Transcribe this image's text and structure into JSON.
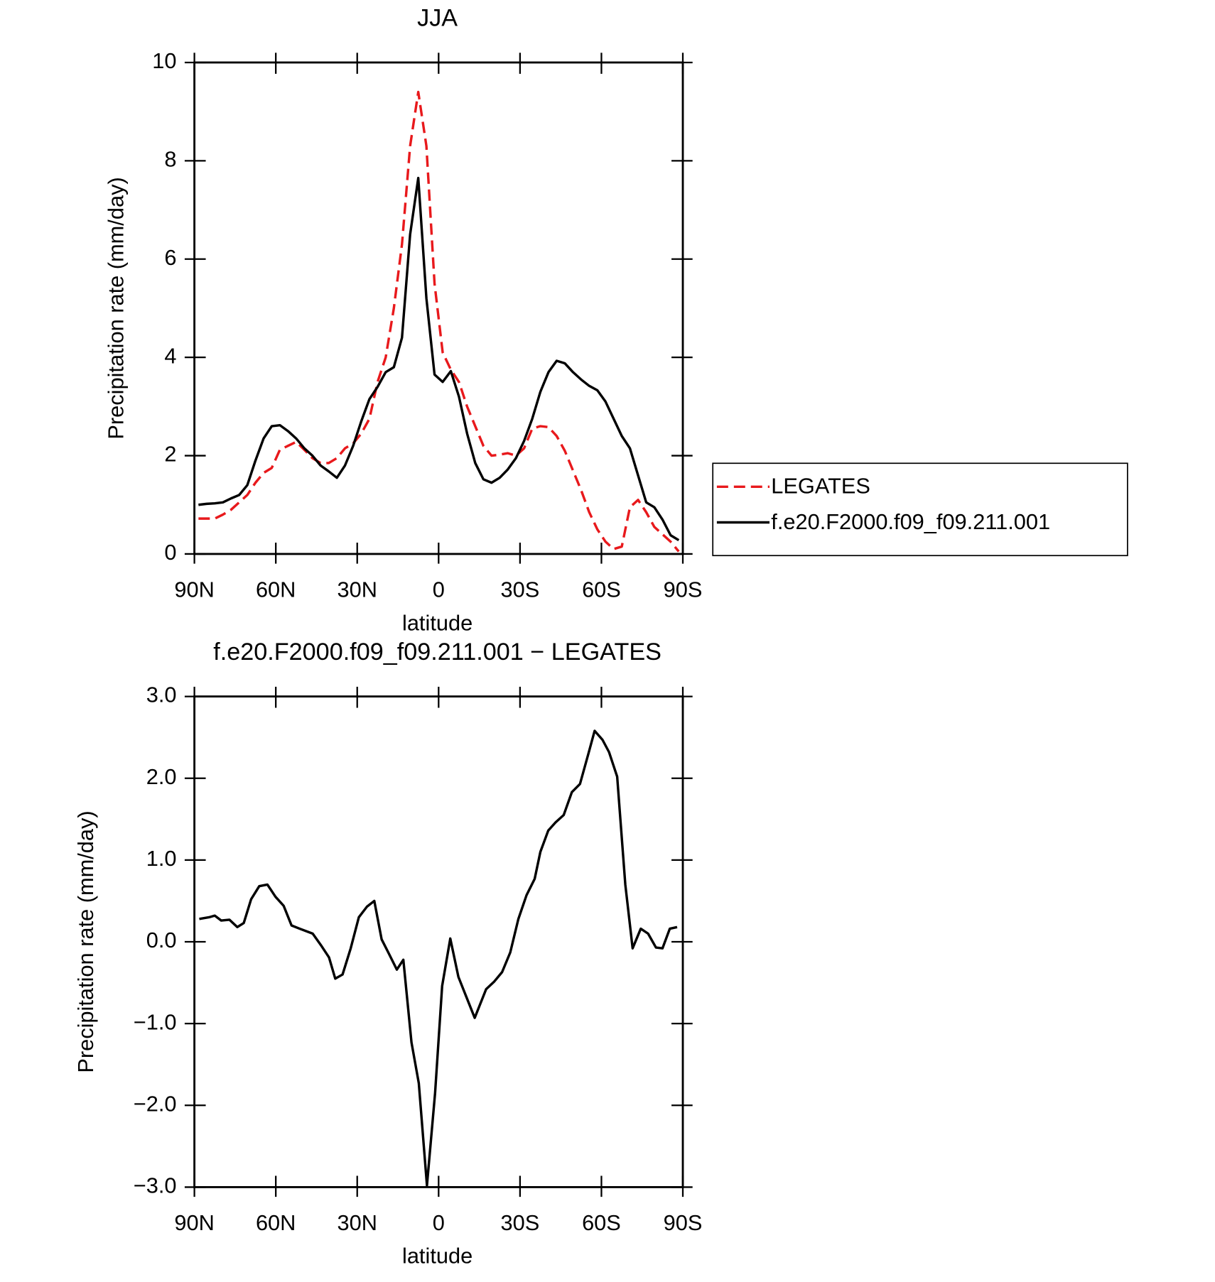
{
  "chart_data": [
    {
      "type": "line",
      "title": "JJA",
      "xlabel": "latitude",
      "ylabel": "Precipitation rate (mm/day)",
      "x": [
        88.5,
        85.5,
        82.5,
        79.5,
        76.5,
        73.5,
        70.5,
        67.5,
        64.5,
        61.5,
        58.5,
        55.5,
        52.5,
        49.5,
        46.5,
        43.5,
        40.5,
        37.5,
        34.5,
        31.5,
        28.5,
        25.5,
        22.5,
        19.5,
        16.5,
        13.5,
        10.5,
        7.5,
        4.5,
        1.5,
        -1.5,
        -4.5,
        -7.5,
        -10.5,
        -13.5,
        -16.5,
        -19.5,
        -22.5,
        -25.5,
        -28.5,
        -31.5,
        -34.5,
        -37.5,
        -40.5,
        -43.5,
        -46.5,
        -49.5,
        -52.5,
        -55.5,
        -58.5,
        -61.5,
        -64.5,
        -67.5,
        -70.5,
        -73.5,
        -76.5,
        -79.5,
        -82.5,
        -85.5,
        -88.5
      ],
      "series": [
        {
          "name": "LEGATES",
          "color": "#e8191c",
          "dash": true,
          "values": [
            0.72,
            0.72,
            0.72,
            0.8,
            0.9,
            1.05,
            1.2,
            1.45,
            1.65,
            1.75,
            2.12,
            2.2,
            2.28,
            2.12,
            1.95,
            1.85,
            1.85,
            1.95,
            2.15,
            2.25,
            2.45,
            2.75,
            3.5,
            4.0,
            5.0,
            6.3,
            8.3,
            9.4,
            8.3,
            5.5,
            4.1,
            3.75,
            3.5,
            3.0,
            2.6,
            2.2,
            2.0,
            2.02,
            2.05,
            2.0,
            2.15,
            2.55,
            2.6,
            2.58,
            2.4,
            2.1,
            1.7,
            1.3,
            0.85,
            0.5,
            0.25,
            0.1,
            0.15,
            0.95,
            1.1,
            0.85,
            0.55,
            0.4,
            0.25,
            0.05
          ]
        },
        {
          "name": "f.e20.F2000.f09_f09.211.001",
          "color": "#000000",
          "dash": false,
          "values": [
            1.0,
            1.02,
            1.03,
            1.05,
            1.13,
            1.2,
            1.4,
            1.9,
            2.35,
            2.6,
            2.62,
            2.5,
            2.35,
            2.15,
            2.0,
            1.8,
            1.68,
            1.55,
            1.8,
            2.2,
            2.7,
            3.15,
            3.4,
            3.7,
            3.8,
            4.4,
            6.5,
            7.65,
            5.2,
            3.65,
            3.5,
            3.72,
            3.2,
            2.45,
            1.85,
            1.52,
            1.45,
            1.55,
            1.72,
            1.95,
            2.3,
            2.75,
            3.3,
            3.7,
            3.93,
            3.88,
            3.7,
            3.55,
            3.42,
            3.33,
            3.1,
            2.75,
            2.4,
            2.15,
            1.6,
            1.05,
            0.95,
            0.7,
            0.38,
            0.28
          ]
        }
      ],
      "xlim": [
        90,
        -90
      ],
      "xticks": [
        {
          "value": 90,
          "label": "90N"
        },
        {
          "value": 60,
          "label": "60N"
        },
        {
          "value": 30,
          "label": "30N"
        },
        0,
        {
          "value": -30,
          "label": "30S"
        },
        {
          "value": -60,
          "label": "60S"
        },
        {
          "value": -90,
          "label": "90S"
        }
      ],
      "ylim": [
        0,
        10
      ],
      "yticks": [
        0,
        2,
        4,
        6,
        8,
        10
      ],
      "legend": "right"
    },
    {
      "type": "line",
      "title": "f.e20.F2000.f09_f09.211.001 − LEGATES",
      "xlabel": "latitude",
      "ylabel": "Precipitation rate (mm/day)",
      "x": [
        88.2,
        84.6,
        82.5,
        80.1,
        77.1,
        74.2,
        71.8,
        69.1,
        66.1,
        63.1,
        60.1,
        57.1,
        54.2,
        51.2,
        46.4,
        43.4,
        40.4,
        38.1,
        35.4,
        32.4,
        29.4,
        26.4,
        23.7,
        21.0,
        18.4,
        15.4,
        13.0,
        10.0,
        7.3,
        4.3,
        1.3,
        -1.3,
        -4.3,
        -7.3,
        -10.3,
        -13.3,
        -17.5,
        -20.4,
        -23.4,
        -26.4,
        -29.4,
        -32.4,
        -35.4,
        -37.5,
        -40.4,
        -43.1,
        -46.1,
        -49.1,
        -52.1,
        -55.2,
        -57.5,
        -60.4,
        -62.8,
        -65.8,
        -68.8,
        -71.5,
        -74.5,
        -77.2,
        -80.1,
        -82.5,
        -85.2,
        -87.9
      ],
      "series": [
        {
          "color": "#000000",
          "dash": false,
          "values": [
            0.28,
            0.3,
            0.32,
            0.26,
            0.27,
            0.18,
            0.23,
            0.52,
            0.68,
            0.7,
            0.55,
            0.44,
            0.2,
            0.16,
            0.1,
            -0.04,
            -0.19,
            -0.45,
            -0.4,
            -0.08,
            0.3,
            0.43,
            0.5,
            0.03,
            -0.14,
            -0.34,
            -0.22,
            -1.23,
            -1.73,
            -2.98,
            -1.85,
            -0.54,
            0.04,
            -0.43,
            -0.68,
            -0.93,
            -0.58,
            -0.49,
            -0.37,
            -0.13,
            0.28,
            0.57,
            0.77,
            1.1,
            1.36,
            1.46,
            1.55,
            1.83,
            1.93,
            2.3,
            2.58,
            2.47,
            2.32,
            2.02,
            0.7,
            -0.08,
            0.16,
            0.1,
            -0.07,
            -0.08,
            0.16,
            0.18
          ]
        }
      ],
      "xlim": [
        90,
        -90
      ],
      "xticks": [
        {
          "value": 90,
          "label": "90N"
        },
        {
          "value": 60,
          "label": "60N"
        },
        {
          "value": 30,
          "label": "30N"
        },
        0,
        {
          "value": -30,
          "label": "30S"
        },
        {
          "value": -60,
          "label": "60S"
        },
        {
          "value": -90,
          "label": "90S"
        }
      ],
      "ylim": [
        -3,
        3
      ],
      "yticks": [
        {
          "value": -3,
          "label": "−3.0"
        },
        {
          "value": -2,
          "label": "−2.0"
        },
        {
          "value": -1,
          "label": "−1.0"
        },
        {
          "value": 0,
          "label": "0.0"
        },
        {
          "value": 1,
          "label": "1.0"
        },
        {
          "value": 2,
          "label": "2.0"
        },
        {
          "value": 3,
          "label": "3.0"
        }
      ]
    }
  ]
}
